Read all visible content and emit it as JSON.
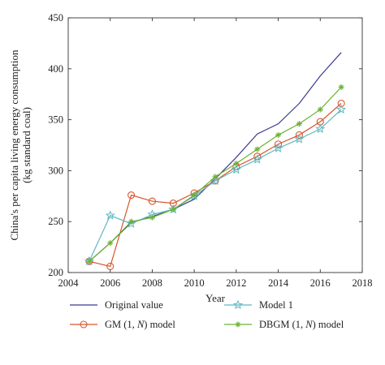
{
  "chart_data": {
    "type": "line",
    "title": "",
    "xlabel": "Year",
    "ylabel_lines": [
      "China's per capita living energy consumption",
      "(kg standard coal)"
    ],
    "xlim": [
      2004,
      2018
    ],
    "ylim": [
      200,
      450
    ],
    "x_ticks": [
      2004,
      2006,
      2008,
      2010,
      2012,
      2014,
      2016,
      2018
    ],
    "y_ticks": [
      200,
      250,
      300,
      350,
      400,
      450
    ],
    "grid": false,
    "legend_position": "bottom",
    "x": [
      2005,
      2006,
      2007,
      2008,
      2009,
      2010,
      2011,
      2012,
      2013,
      2014,
      2015,
      2016,
      2017
    ],
    "series": [
      {
        "name": "Original value",
        "values": [
          211,
          229,
          249,
          255,
          262,
          272,
          292,
          313,
          336,
          346,
          366,
          393,
          416
        ],
        "color": "#3b3b8f",
        "marker": "none"
      },
      {
        "name": "GM (1, N) model",
        "name_parts": [
          "GM (1, ",
          "N",
          ") model"
        ],
        "values": [
          211,
          206,
          276,
          270,
          268,
          278,
          290,
          304,
          314,
          326,
          335,
          348,
          366
        ],
        "color": "#d9542c",
        "marker": "circle"
      },
      {
        "name": "Model 1",
        "values": [
          211,
          256,
          248,
          257,
          262,
          275,
          290,
          301,
          311,
          322,
          331,
          341,
          360
        ],
        "color": "#5fb8c2",
        "marker": "star"
      },
      {
        "name": "DBGM (1, N) model",
        "name_parts": [
          "DBGM (1, ",
          "N",
          ") model"
        ],
        "values": [
          211,
          229,
          250,
          254,
          262,
          276,
          294,
          307,
          321,
          335,
          346,
          360,
          382
        ],
        "color": "#6cb233",
        "marker": "plus"
      }
    ]
  }
}
